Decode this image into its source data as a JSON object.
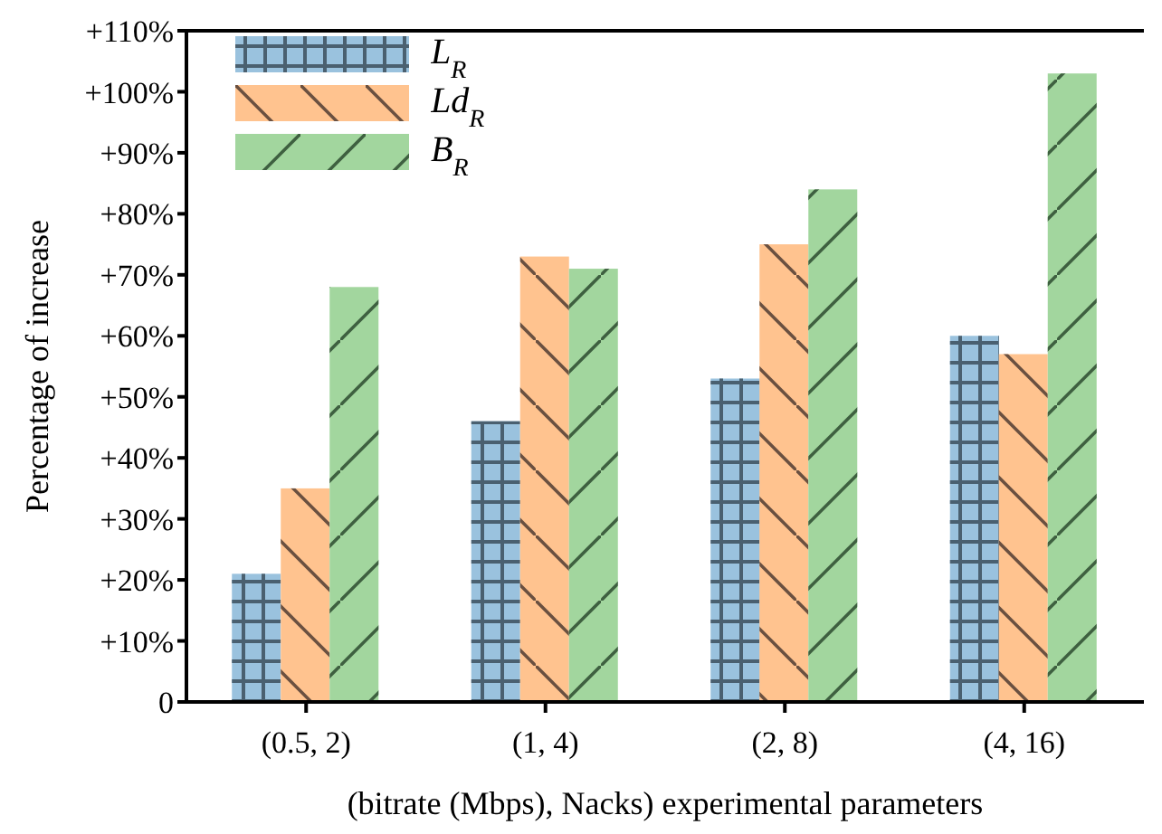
{
  "chart_data": {
    "type": "bar",
    "xlabel": "(bitrate (Mbps), Nacks) experimental parameters",
    "ylabel": "Percentage of increase",
    "categories": [
      "(0.5, 2)",
      "(1, 4)",
      "(2, 8)",
      "(4, 16)"
    ],
    "series": [
      {
        "name": "L$_{R}$",
        "color": "#9ac2de",
        "values": [
          21,
          46,
          53,
          60
        ]
      },
      {
        "name": "Ld$_{R}$",
        "color": "#ffc38f",
        "values": [
          35,
          73,
          75,
          57
        ]
      },
      {
        "name": "B$_{R}$",
        "color": "#a2d69e",
        "values": [
          68,
          71,
          84,
          103
        ]
      }
    ],
    "ylim": [
      0,
      110
    ],
    "yticks": [
      0,
      {
        "value": 10,
        "label": "+10%"
      },
      {
        "value": 20,
        "label": "+20%"
      },
      {
        "value": 30,
        "label": "+30%"
      },
      {
        "value": 40,
        "label": "+40%"
      },
      {
        "value": 50,
        "label": "+50%"
      },
      {
        "value": 60,
        "label": "+60%"
      },
      {
        "value": 70,
        "label": "+70%"
      },
      {
        "value": 80,
        "label": "+80%"
      },
      {
        "value": 90,
        "label": "+90%"
      },
      {
        "value": 100,
        "label": "+100%"
      },
      {
        "value": 110,
        "label": "+110%"
      }
    ],
    "grid": false,
    "legend": "top left"
  }
}
